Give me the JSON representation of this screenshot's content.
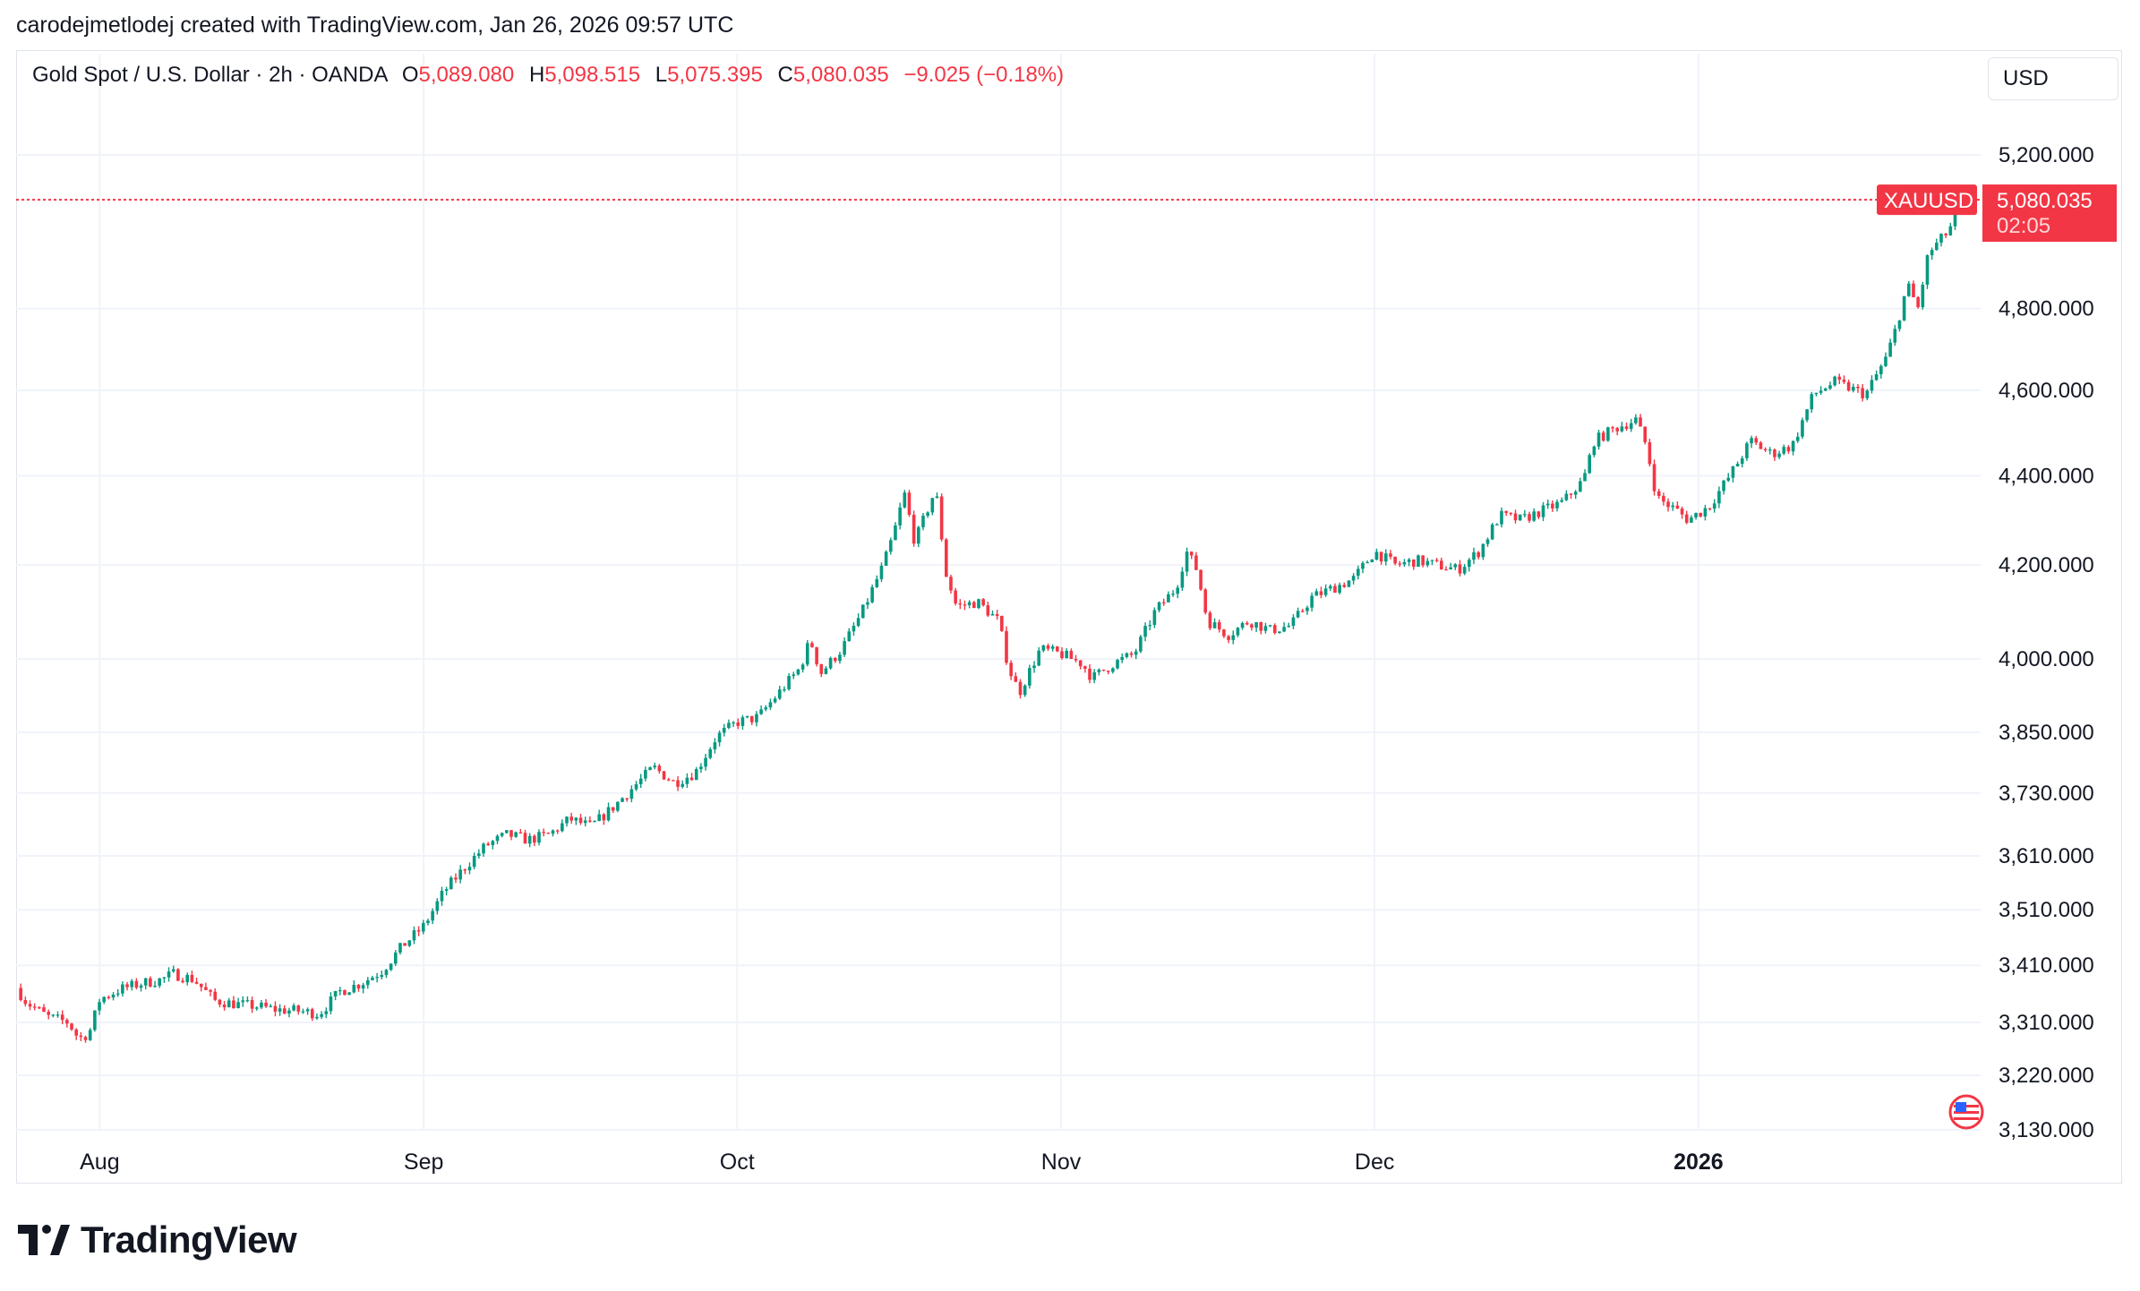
{
  "header": {
    "attribution": "carodejmetlodej created with TradingView.com, Jan 26, 2026 09:57 UTC"
  },
  "legend": {
    "symbol": "Gold Spot / U.S. Dollar · 2h · OANDA",
    "o_label": "O",
    "o_value": "5,089.080",
    "h_label": "H",
    "h_value": "5,098.515",
    "l_label": "L",
    "l_value": "5,075.395",
    "c_label": "C",
    "c_value": "5,080.035",
    "change": "−9.025 (−0.18%)"
  },
  "currency_button": "USD",
  "price_tag": {
    "ticker": "XAUUSD",
    "price": "5,080.035",
    "countdown": "02:05"
  },
  "branding": {
    "wordmark": "TradingView"
  },
  "colors": {
    "up": "#089981",
    "down": "#f23645",
    "grid": "#f0f3fa",
    "price_line": "#f23645"
  },
  "chart_data": {
    "type": "candlestick",
    "title": "Gold Spot / U.S. Dollar · 2h · OANDA",
    "y_ticks": [
      "5,200.000",
      "4,800.000",
      "4,600.000",
      "4,400.000",
      "4,200.000",
      "4,000.000",
      "3,850.000",
      "3,730.000",
      "3,610.000",
      "3,510.000",
      "3,410.000",
      "3,310.000",
      "3,220.000",
      "3,130.000"
    ],
    "y_tick_values": [
      5200,
      4800,
      4600,
      4400,
      4200,
      4000,
      3850,
      3730,
      3610,
      3510,
      3410,
      3310,
      3220,
      3130
    ],
    "y_scale": "log",
    "ylim": [
      3130,
      5350
    ],
    "x_ticks": [
      "Aug",
      "Sep",
      "Oct",
      "Nov",
      "Dec",
      "2026"
    ],
    "x_tick_dates": [
      "2025-08-01",
      "2025-09-01",
      "2025-10-01",
      "2025-11-01",
      "2025-12-01",
      "2026-01-01"
    ],
    "x_range": [
      "2025-07-24",
      "2026-01-26"
    ],
    "grid": true,
    "last_price": 5080.035,
    "series": [
      {
        "points": [
          [
            "2025-07-24",
            3370
          ],
          [
            "2025-07-25",
            3345
          ],
          [
            "2025-07-27",
            3320
          ],
          [
            "2025-07-29",
            3310
          ],
          [
            "2025-07-30",
            3282
          ],
          [
            "2025-07-31",
            3292
          ],
          [
            "2025-08-01",
            3350
          ],
          [
            "2025-08-03",
            3368
          ],
          [
            "2025-08-05",
            3378
          ],
          [
            "2025-08-07",
            3385
          ],
          [
            "2025-08-08",
            3395
          ],
          [
            "2025-08-10",
            3385
          ],
          [
            "2025-08-12",
            3348
          ],
          [
            "2025-08-14",
            3342
          ],
          [
            "2025-08-16",
            3338
          ],
          [
            "2025-08-18",
            3332
          ],
          [
            "2025-08-20",
            3330
          ],
          [
            "2025-08-22",
            3325
          ],
          [
            "2025-08-24",
            3364
          ],
          [
            "2025-08-26",
            3378
          ],
          [
            "2025-08-28",
            3400
          ],
          [
            "2025-08-30",
            3445
          ],
          [
            "2025-09-01",
            3480
          ],
          [
            "2025-09-03",
            3545
          ],
          [
            "2025-09-05",
            3590
          ],
          [
            "2025-09-07",
            3630
          ],
          [
            "2025-09-09",
            3650
          ],
          [
            "2025-09-11",
            3640
          ],
          [
            "2025-09-13",
            3650
          ],
          [
            "2025-09-15",
            3680
          ],
          [
            "2025-09-17",
            3665
          ],
          [
            "2025-09-19",
            3700
          ],
          [
            "2025-09-21",
            3740
          ],
          [
            "2025-09-23",
            3780
          ],
          [
            "2025-09-25",
            3750
          ],
          [
            "2025-09-27",
            3770
          ],
          [
            "2025-09-29",
            3840
          ],
          [
            "2025-10-01",
            3870
          ],
          [
            "2025-10-03",
            3880
          ],
          [
            "2025-10-05",
            3930
          ],
          [
            "2025-10-07",
            3980
          ],
          [
            "2025-10-08",
            4040
          ],
          [
            "2025-10-09",
            3970
          ],
          [
            "2025-10-11",
            4020
          ],
          [
            "2025-10-13",
            4100
          ],
          [
            "2025-10-15",
            4200
          ],
          [
            "2025-10-16",
            4270
          ],
          [
            "2025-10-17",
            4360
          ],
          [
            "2025-10-18",
            4250
          ],
          [
            "2025-10-20",
            4370
          ],
          [
            "2025-10-21",
            4180
          ],
          [
            "2025-10-22",
            4110
          ],
          [
            "2025-10-24",
            4120
          ],
          [
            "2025-10-26",
            4080
          ],
          [
            "2025-10-27",
            3980
          ],
          [
            "2025-10-28",
            3930
          ],
          [
            "2025-10-30",
            4020
          ],
          [
            "2025-11-01",
            4010
          ],
          [
            "2025-11-03",
            3990
          ],
          [
            "2025-11-04",
            3960
          ],
          [
            "2025-11-06",
            3990
          ],
          [
            "2025-11-08",
            4010
          ],
          [
            "2025-11-10",
            4100
          ],
          [
            "2025-11-12",
            4150
          ],
          [
            "2025-11-13",
            4230
          ],
          [
            "2025-11-14",
            4190
          ],
          [
            "2025-11-15",
            4080
          ],
          [
            "2025-11-17",
            4050
          ],
          [
            "2025-11-19",
            4080
          ],
          [
            "2025-11-21",
            4060
          ],
          [
            "2025-11-23",
            4070
          ],
          [
            "2025-11-25",
            4130
          ],
          [
            "2025-11-27",
            4150
          ],
          [
            "2025-11-29",
            4170
          ],
          [
            "2025-12-01",
            4230
          ],
          [
            "2025-12-03",
            4200
          ],
          [
            "2025-12-05",
            4210
          ],
          [
            "2025-12-07",
            4200
          ],
          [
            "2025-12-09",
            4190
          ],
          [
            "2025-12-11",
            4230
          ],
          [
            "2025-12-13",
            4310
          ],
          [
            "2025-12-15",
            4300
          ],
          [
            "2025-12-17",
            4320
          ],
          [
            "2025-12-19",
            4340
          ],
          [
            "2025-12-21",
            4390
          ],
          [
            "2025-12-22",
            4480
          ],
          [
            "2025-12-24",
            4510
          ],
          [
            "2025-12-26",
            4530
          ],
          [
            "2025-12-27",
            4470
          ],
          [
            "2025-12-28",
            4350
          ],
          [
            "2025-12-30",
            4320
          ],
          [
            "2025-12-31",
            4300
          ],
          [
            "2026-01-02",
            4330
          ],
          [
            "2026-01-04",
            4400
          ],
          [
            "2026-01-06",
            4480
          ],
          [
            "2026-01-08",
            4450
          ],
          [
            "2026-01-10",
            4470
          ],
          [
            "2026-01-12",
            4590
          ],
          [
            "2026-01-14",
            4620
          ],
          [
            "2026-01-16",
            4600
          ],
          [
            "2026-01-17",
            4590
          ],
          [
            "2026-01-19",
            4680
          ],
          [
            "2026-01-20",
            4760
          ],
          [
            "2026-01-21",
            4860
          ],
          [
            "2026-01-22",
            4800
          ],
          [
            "2026-01-23",
            4940
          ],
          [
            "2026-01-25",
            5000
          ],
          [
            "2026-01-26",
            5080.035
          ]
        ]
      }
    ]
  }
}
